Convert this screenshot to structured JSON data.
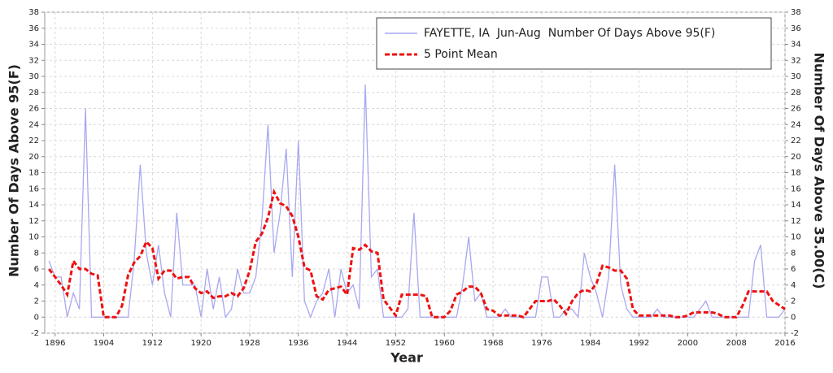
{
  "chart_data": {
    "type": "line",
    "ylabel": "Number Of Days Above 95(F)",
    "y2label": "Number Of Days Above 35.00(C)",
    "xlabel": "Year",
    "x": [
      1895,
      1896,
      1897,
      1898,
      1899,
      1900,
      1901,
      1902,
      1903,
      1904,
      1905,
      1906,
      1907,
      1908,
      1909,
      1910,
      1911,
      1912,
      1913,
      1914,
      1915,
      1916,
      1917,
      1918,
      1919,
      1920,
      1921,
      1922,
      1923,
      1924,
      1925,
      1926,
      1927,
      1928,
      1929,
      1930,
      1931,
      1932,
      1933,
      1934,
      1935,
      1936,
      1937,
      1938,
      1939,
      1940,
      1941,
      1942,
      1943,
      1944,
      1945,
      1946,
      1947,
      1948,
      1949,
      1950,
      1951,
      1952,
      1953,
      1954,
      1955,
      1956,
      1957,
      1958,
      1959,
      1960,
      1961,
      1962,
      1963,
      1964,
      1965,
      1966,
      1967,
      1968,
      1969,
      1970,
      1971,
      1972,
      1973,
      1974,
      1975,
      1976,
      1977,
      1978,
      1979,
      1980,
      1981,
      1982,
      1983,
      1984,
      1985,
      1986,
      1987,
      1988,
      1989,
      1990,
      1991,
      1992,
      1993,
      1994,
      1995,
      1996,
      1997,
      1998,
      1999,
      2000,
      2001,
      2002,
      2003,
      2004,
      2005,
      2006,
      2007,
      2008,
      2009,
      2010,
      2011,
      2012,
      2013,
      2014,
      2015,
      2016
    ],
    "series": [
      {
        "name": "FAYETTE, IA  Jun-Aug  Number Of Days Above 95(F)",
        "color": "#a8a8f0",
        "dash": false,
        "values": [
          7,
          5,
          5,
          0,
          3,
          1,
          26,
          0,
          0,
          0,
          0,
          0,
          0,
          0,
          7,
          19,
          8,
          4,
          9,
          3,
          0,
          13,
          4,
          4,
          4,
          0,
          6,
          1,
          5,
          0,
          1,
          6,
          3,
          3,
          5,
          12,
          24,
          8,
          13,
          21,
          5,
          22,
          2,
          0,
          2,
          3,
          6,
          0,
          6,
          3,
          4,
          1,
          29,
          5,
          6,
          0,
          0,
          0,
          0,
          1,
          13,
          0,
          0,
          0,
          0,
          0,
          0,
          0,
          4,
          10,
          2,
          3,
          0,
          0,
          0,
          1,
          0,
          0,
          0,
          0,
          0,
          5,
          5,
          0,
          0,
          1,
          1,
          0,
          8,
          5,
          3,
          0,
          5,
          19,
          4,
          1,
          0,
          0,
          0,
          0,
          1,
          0,
          0,
          0,
          0,
          0,
          0,
          1,
          2,
          0,
          0,
          0,
          0,
          0,
          0,
          0,
          7,
          9,
          0,
          0,
          0,
          1
        ]
      },
      {
        "name": "5 Point Mean",
        "color": "#ee1111",
        "dash": true,
        "values": [
          6,
          5,
          4,
          2.8,
          7,
          6,
          6,
          5.4,
          5.2,
          0,
          0,
          0,
          1.4,
          5.2,
          6.8,
          7.6,
          9.4,
          8.6,
          4.8,
          5.8,
          5.8,
          4.8,
          5,
          5,
          3.6,
          3,
          3.2,
          2.4,
          2.6,
          2.6,
          3,
          2.6,
          3.6,
          5.8,
          9.4,
          10.4,
          12.4,
          15.6,
          14.2,
          13.8,
          12.6,
          10,
          6.2,
          5.8,
          2.6,
          2.2,
          3.4,
          3.6,
          3.8,
          2.8,
          8.6,
          8.4,
          9,
          8.2,
          8,
          2.2,
          1.2,
          0.2,
          2.8,
          2.8,
          2.8,
          2.8,
          2.6,
          0,
          0,
          0,
          0.8,
          2.8,
          3.2,
          3.8,
          3.8,
          3,
          1,
          0.8,
          0.2,
          0.2,
          0.2,
          0.2,
          0,
          1,
          2,
          2,
          2,
          2.2,
          1.4,
          0.4,
          2,
          3,
          3.4,
          3.2,
          4.2,
          6.4,
          6.2,
          5.8,
          5.8,
          4.8,
          1,
          0.2,
          0.2,
          0.2,
          0.2,
          0.2,
          0.2,
          0,
          0,
          0.2,
          0.6,
          0.6,
          0.6,
          0.6,
          0.4,
          0,
          0,
          0,
          1.4,
          3.2,
          3.2,
          3.2,
          3.2,
          2,
          1.5,
          1
        ]
      }
    ],
    "xlim": [
      1894.3,
      2016
    ],
    "xticks": [
      1896,
      1904,
      1912,
      1920,
      1928,
      1936,
      1944,
      1952,
      1960,
      1968,
      1976,
      1984,
      1992,
      2000,
      2008,
      2016
    ],
    "ylim": [
      -2,
      38
    ],
    "yticks": [
      -2,
      0,
      2,
      4,
      6,
      8,
      10,
      12,
      14,
      16,
      18,
      20,
      22,
      24,
      26,
      28,
      30,
      32,
      34,
      36,
      38
    ],
    "y2lim": [
      -2,
      38
    ],
    "y2ticks": [
      -2,
      0,
      2,
      4,
      6,
      8,
      10,
      12,
      14,
      16,
      18,
      20,
      22,
      24,
      26,
      28,
      30,
      32,
      34,
      36,
      38
    ],
    "grid": true,
    "legend": "upper right"
  }
}
